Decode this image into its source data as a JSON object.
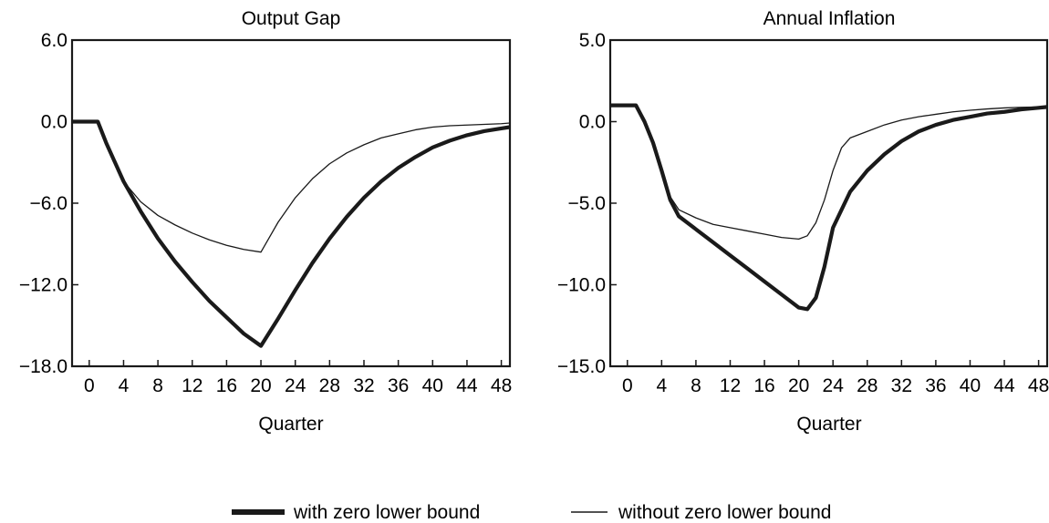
{
  "chart_data": [
    {
      "type": "line",
      "title": "Output Gap",
      "xlabel": "Quarter",
      "ylabel": "",
      "xlim": [
        -2,
        49
      ],
      "ylim": [
        -18,
        6
      ],
      "xticks": [
        0,
        4,
        8,
        12,
        16,
        20,
        24,
        28,
        32,
        36,
        40,
        44,
        48
      ],
      "yticks": [
        6,
        0,
        -6,
        -12,
        -18
      ],
      "ytick_labels": [
        "6.0",
        "0.0",
        "−6.0",
        "−12.0",
        "−18.0"
      ],
      "series": [
        {
          "name": "with zero lower bound",
          "style": "thick",
          "x": [
            -2,
            0,
            1,
            2,
            4,
            6,
            8,
            10,
            12,
            14,
            16,
            18,
            20,
            22,
            24,
            26,
            28,
            30,
            32,
            34,
            36,
            38,
            40,
            42,
            44,
            46,
            48,
            49
          ],
          "y": [
            0,
            0,
            0,
            -1.6,
            -4.4,
            -6.6,
            -8.6,
            -10.3,
            -11.8,
            -13.2,
            -14.4,
            -15.6,
            -16.5,
            -14.5,
            -12.4,
            -10.4,
            -8.6,
            -7.0,
            -5.6,
            -4.4,
            -3.4,
            -2.6,
            -1.9,
            -1.4,
            -1.0,
            -0.7,
            -0.5,
            -0.4
          ]
        },
        {
          "name": "without zero lower bound",
          "style": "thin",
          "x": [
            -2,
            0,
            1,
            2,
            4,
            6,
            8,
            10,
            12,
            14,
            16,
            18,
            20,
            22,
            24,
            26,
            28,
            30,
            32,
            34,
            36,
            38,
            40,
            42,
            44,
            46,
            48,
            49
          ],
          "y": [
            0,
            0,
            0,
            -1.6,
            -4.4,
            -5.9,
            -6.9,
            -7.6,
            -8.2,
            -8.7,
            -9.1,
            -9.4,
            -9.6,
            -7.4,
            -5.6,
            -4.2,
            -3.1,
            -2.3,
            -1.7,
            -1.2,
            -0.9,
            -0.6,
            -0.4,
            -0.3,
            -0.25,
            -0.2,
            -0.15,
            -0.1
          ]
        }
      ]
    },
    {
      "type": "line",
      "title": "Annual Inflation",
      "xlabel": "Quarter",
      "ylabel": "",
      "xlim": [
        -2,
        49
      ],
      "ylim": [
        -15,
        5
      ],
      "xticks": [
        0,
        4,
        8,
        12,
        16,
        20,
        24,
        28,
        32,
        36,
        40,
        44,
        48
      ],
      "yticks": [
        5,
        0,
        -5,
        -10,
        -15
      ],
      "ytick_labels": [
        "5.0",
        "0.0",
        "−5.0",
        "−10.0",
        "−15.0"
      ],
      "series": [
        {
          "name": "with zero lower bound",
          "style": "thick",
          "x": [
            -2,
            0,
            1,
            2,
            3,
            4,
            5,
            6,
            8,
            10,
            12,
            14,
            16,
            18,
            20,
            21,
            22,
            23,
            24,
            26,
            28,
            30,
            32,
            34,
            36,
            38,
            40,
            42,
            44,
            46,
            48,
            49
          ],
          "y": [
            1.0,
            1.0,
            1.0,
            0.0,
            -1.3,
            -3.0,
            -4.8,
            -5.8,
            -6.6,
            -7.4,
            -8.2,
            -9.0,
            -9.8,
            -10.6,
            -11.4,
            -11.5,
            -10.8,
            -8.9,
            -6.5,
            -4.3,
            -3.0,
            -2.0,
            -1.2,
            -0.6,
            -0.2,
            0.1,
            0.3,
            0.5,
            0.6,
            0.75,
            0.85,
            0.9
          ]
        },
        {
          "name": "without zero lower bound",
          "style": "thin",
          "x": [
            -2,
            0,
            1,
            2,
            3,
            4,
            5,
            6,
            8,
            10,
            12,
            14,
            16,
            18,
            20,
            21,
            22,
            23,
            24,
            25,
            26,
            28,
            30,
            32,
            34,
            36,
            38,
            40,
            42,
            44,
            46,
            48,
            49
          ],
          "y": [
            1.0,
            1.0,
            1.0,
            0.0,
            -1.3,
            -3.0,
            -4.6,
            -5.4,
            -5.9,
            -6.3,
            -6.5,
            -6.7,
            -6.9,
            -7.1,
            -7.2,
            -7.0,
            -6.2,
            -4.8,
            -3.0,
            -1.6,
            -1.0,
            -0.6,
            -0.2,
            0.1,
            0.3,
            0.45,
            0.6,
            0.7,
            0.78,
            0.84,
            0.88,
            0.9,
            0.9
          ]
        }
      ]
    }
  ],
  "legend": {
    "placement": "bottom-center",
    "items": [
      {
        "label": "with zero lower bound",
        "style": "thick"
      },
      {
        "label": "without zero lower bound",
        "style": "thin"
      }
    ]
  }
}
